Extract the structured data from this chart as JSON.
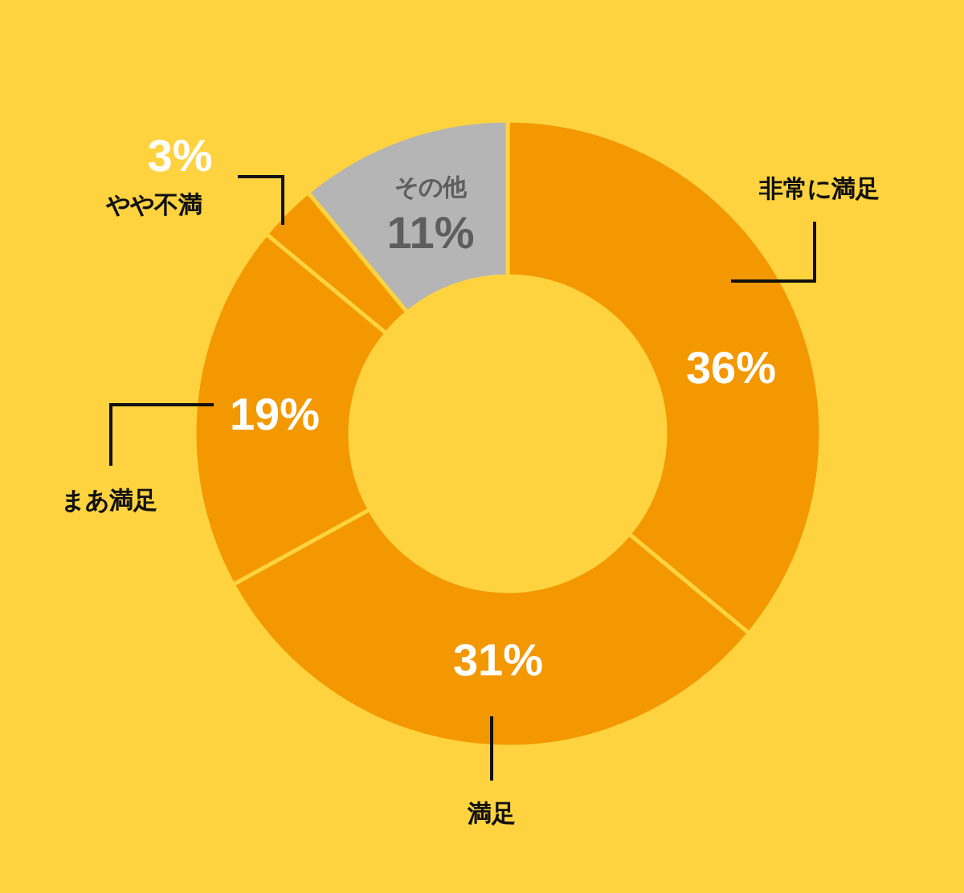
{
  "chart_data": {
    "type": "donut",
    "categories": [
      "非常に満足",
      "満足",
      "まあ満足",
      "やや不満",
      "その他"
    ],
    "values": [
      36,
      31,
      19,
      3,
      11
    ],
    "colors": [
      "#f39800",
      "#f39800",
      "#f39800",
      "#f39800",
      "#b5b5b5"
    ],
    "value_labels": [
      "36%",
      "31%",
      "19%",
      "3%",
      "11%"
    ]
  }
}
